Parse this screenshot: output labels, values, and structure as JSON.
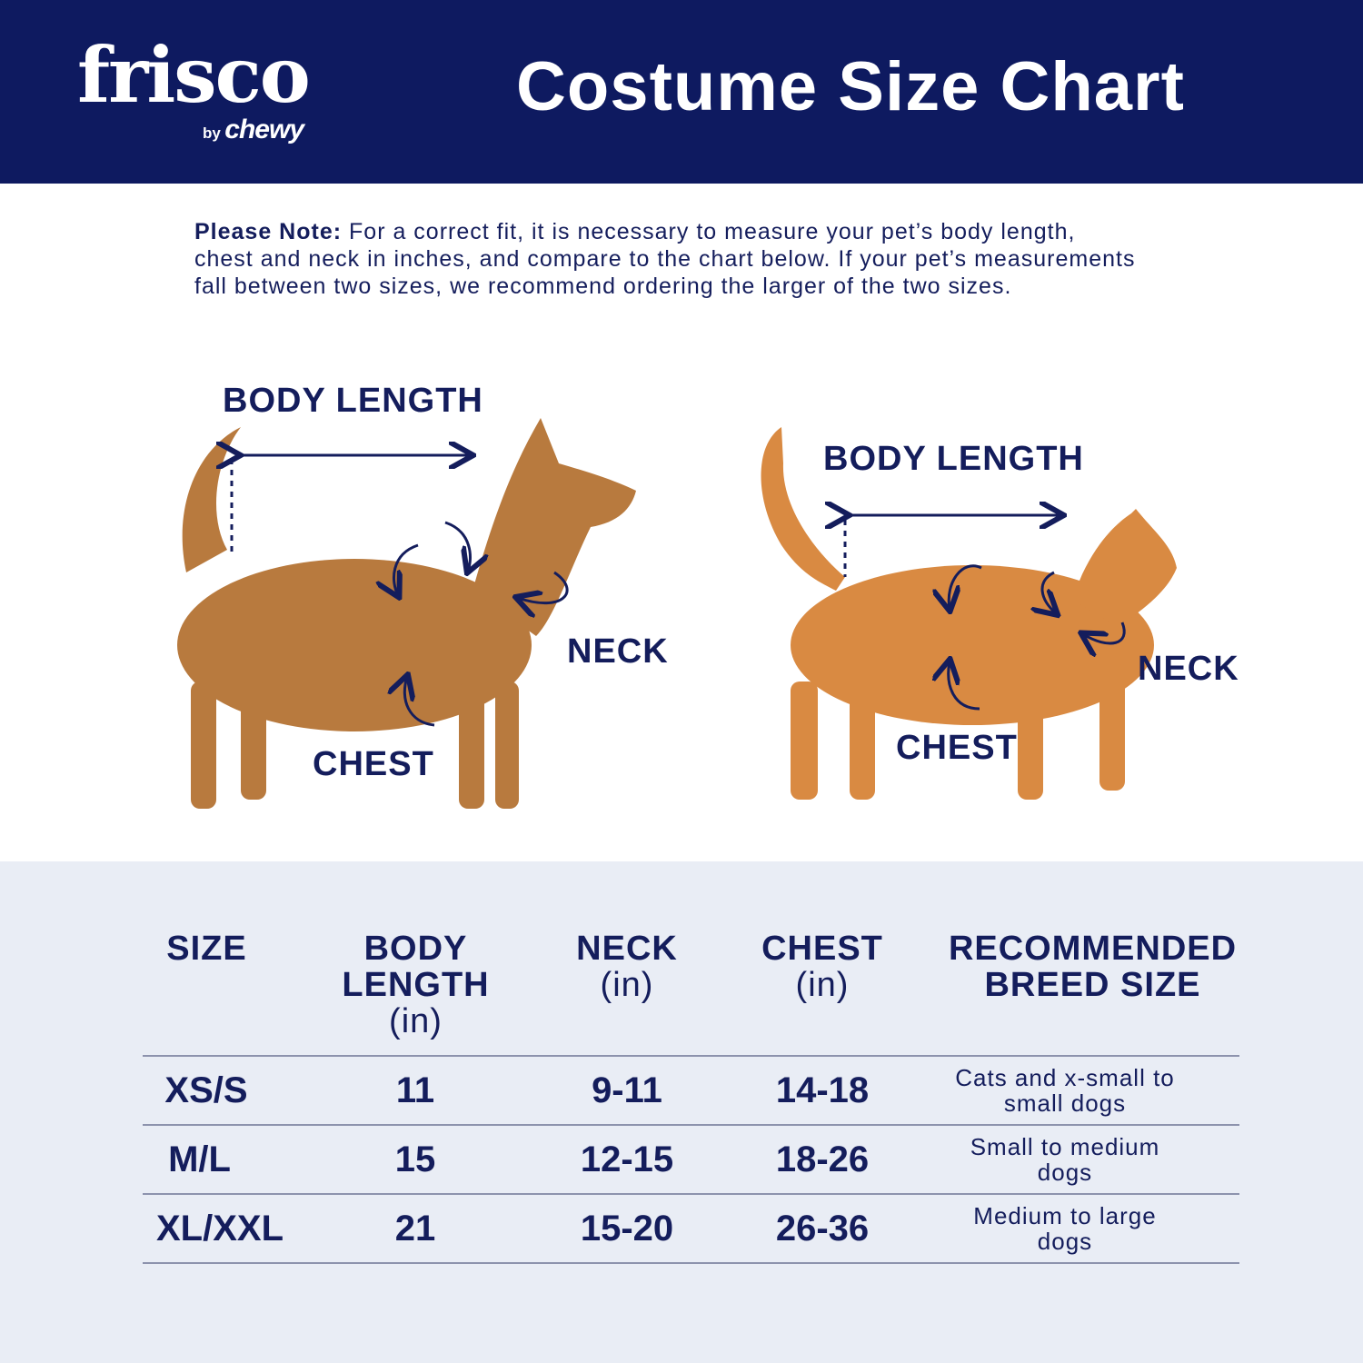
{
  "brand": {
    "logo_main": "frisco",
    "logo_by": "by",
    "logo_chewy": "chewy",
    "navy": "#0e1a60",
    "text": "#141d5c",
    "table_bg": "#e9edf5"
  },
  "header": {
    "title": "Costume Size Chart"
  },
  "note": {
    "label": "Please Note:",
    "text": "For a correct fit, it is necessary to measure your pet’s body length, chest and neck in inches, and compare to the chart below. If your pet’s measurements fall between two sizes, we recommend ordering the larger of the two sizes."
  },
  "dog": {
    "body_length": "BODY LENGTH",
    "neck": "NECK",
    "chest": "CHEST"
  },
  "cat": {
    "body_length": "BODY LENGTH",
    "neck": "NECK",
    "chest": "CHEST"
  },
  "table": {
    "headers": [
      {
        "title": "SIZE",
        "unit": ""
      },
      {
        "title": "BODY LENGTH",
        "unit": "(in)"
      },
      {
        "title": "NECK",
        "unit": "(in)"
      },
      {
        "title": "CHEST",
        "unit": "(in)"
      },
      {
        "title": "RECOMMENDED BREED SIZE",
        "unit": ""
      }
    ],
    "rows": [
      {
        "size": "XS/S",
        "body_length": "11",
        "neck": "9-11",
        "chest": "14-18",
        "breed": "Cats and x-small to small dogs"
      },
      {
        "size": "M/L",
        "body_length": "15",
        "neck": "12-15",
        "chest": "18-26",
        "breed": "Small to medium dogs"
      },
      {
        "size": "XL/XXL",
        "body_length": "21",
        "neck": "15-20",
        "chest": "26-36",
        "breed": "Medium to large dogs"
      }
    ]
  }
}
